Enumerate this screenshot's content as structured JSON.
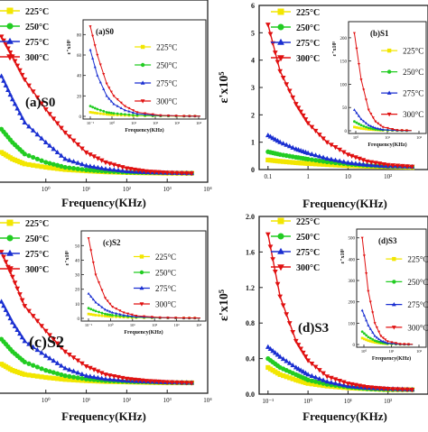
{
  "figure": {
    "colors": {
      "225": "#f2e600",
      "250": "#22cc22",
      "275": "#1a2fd1",
      "300": "#e01010"
    },
    "markers": {
      "225": "square",
      "250": "circle",
      "275": "triangle-up",
      "300": "triangle-down"
    },
    "legend_unit": "°C"
  },
  "chart_data": [
    {
      "type": "line",
      "panel": "top-left",
      "label": "(a)S0",
      "xlabel": "Frequency(KHz)",
      "ylabel": "",
      "x_scale": "log",
      "xlim": [
        0.06,
        10000
      ],
      "x_ticks": [
        "10⁰",
        "10¹",
        "10²",
        "10³",
        "10⁴"
      ],
      "x_tick_values": [
        1,
        10,
        100,
        1000,
        10000
      ],
      "legend_position": "top-left",
      "series": [
        {
          "name": "225",
          "x": [
            0.08,
            0.15,
            0.3,
            1,
            3,
            10,
            30,
            100,
            300,
            1000,
            4000
          ],
          "y": [
            0.9,
            0.7,
            0.55,
            0.45,
            0.38,
            0.34,
            0.31,
            0.29,
            0.28,
            0.27,
            0.27
          ]
        },
        {
          "name": "250",
          "x": [
            0.08,
            0.15,
            0.3,
            1,
            3,
            10,
            30,
            100,
            300,
            1000,
            4000
          ],
          "y": [
            1.6,
            1.2,
            0.85,
            0.6,
            0.45,
            0.37,
            0.33,
            0.3,
            0.29,
            0.28,
            0.27
          ]
        },
        {
          "name": "275",
          "x": [
            0.08,
            0.15,
            0.3,
            1,
            3,
            10,
            30,
            100,
            300,
            1000,
            4000
          ],
          "y": [
            3.2,
            2.5,
            1.8,
            1.2,
            0.7,
            0.5,
            0.4,
            0.33,
            0.3,
            0.28,
            0.27
          ]
        },
        {
          "name": "300",
          "x": [
            0.08,
            0.15,
            0.3,
            1,
            3,
            10,
            30,
            100,
            300,
            1000,
            4000
          ],
          "y": [
            4.4,
            3.8,
            3.1,
            2.2,
            1.5,
            0.9,
            0.6,
            0.42,
            0.33,
            0.29,
            0.27
          ]
        }
      ],
      "inset": {
        "label": "(a)S0",
        "ylabel": "ε\"x10⁵",
        "xlabel": "Frequency(KHz)",
        "yticks": [
          0,
          20,
          40,
          60,
          80
        ],
        "ylim": [
          0,
          90
        ],
        "x_ticks": [
          "10⁻¹",
          "10⁰",
          "10¹",
          "10²",
          "10³",
          "10⁴"
        ],
        "series": [
          {
            "name": "225",
            "x": [
              0.1,
              0.2,
              0.5,
              1,
              3,
              10,
              100,
              1000,
              5000
            ],
            "y": [
              4,
              3,
              2,
              1.5,
              1,
              0.6,
              0.3,
              0.2,
              0.2
            ]
          },
          {
            "name": "250",
            "x": [
              0.1,
              0.2,
              0.5,
              1,
              3,
              10,
              100,
              1000,
              5000
            ],
            "y": [
              10,
              7,
              4,
              3,
              2,
              1,
              0.4,
              0.2,
              0.2
            ]
          },
          {
            "name": "275",
            "x": [
              0.1,
              0.2,
              0.5,
              1,
              3,
              10,
              100,
              1000,
              5000
            ],
            "y": [
              65,
              40,
              20,
              12,
              6,
              2.5,
              0.8,
              0.3,
              0.2
            ]
          },
          {
            "name": "300",
            "x": [
              0.1,
              0.2,
              0.5,
              1,
              3,
              10,
              100,
              1000,
              5000
            ],
            "y": [
              88,
              60,
              32,
              20,
              10,
              4,
              1,
              0.3,
              0.2
            ]
          }
        ]
      }
    },
    {
      "type": "line",
      "panel": "top-right",
      "label": "",
      "xlabel": "Frequency(KHz)",
      "ylabel": "ε'x10⁵",
      "x_scale": "log",
      "xlim": [
        0.06,
        1000
      ],
      "ylim": [
        0,
        6
      ],
      "yticks": [
        0,
        1,
        2,
        3,
        4,
        5,
        6
      ],
      "x_ticks": [
        "0.1",
        "1",
        "10",
        "10²"
      ],
      "x_tick_values": [
        0.1,
        1,
        10,
        100
      ],
      "legend_position": "top-left",
      "series": [
        {
          "name": "225",
          "x": [
            0.1,
            0.2,
            0.5,
            1,
            3,
            10,
            30,
            100,
            400
          ],
          "y": [
            0.35,
            0.3,
            0.25,
            0.22,
            0.18,
            0.14,
            0.12,
            0.1,
            0.08
          ]
        },
        {
          "name": "250",
          "x": [
            0.1,
            0.2,
            0.5,
            1,
            3,
            10,
            30,
            100,
            400
          ],
          "y": [
            0.65,
            0.55,
            0.45,
            0.38,
            0.28,
            0.2,
            0.15,
            0.12,
            0.1
          ]
        },
        {
          "name": "275",
          "x": [
            0.1,
            0.2,
            0.5,
            1,
            3,
            10,
            30,
            100,
            400
          ],
          "y": [
            1.25,
            1.0,
            0.75,
            0.6,
            0.4,
            0.25,
            0.17,
            0.12,
            0.1
          ]
        },
        {
          "name": "300",
          "x": [
            0.1,
            0.2,
            0.5,
            1,
            3,
            10,
            30,
            100,
            400
          ],
          "y": [
            5.3,
            3.6,
            2.4,
            1.7,
            1.0,
            0.55,
            0.3,
            0.17,
            0.11
          ]
        }
      ],
      "inset": {
        "label": "(b)S1",
        "ylabel": "ε\"x10⁵",
        "xlabel": "Frequency(KHz)",
        "yticks": [
          0,
          50,
          100,
          150,
          200
        ],
        "ylim": [
          0,
          225
        ],
        "x_ticks": [
          "10⁰",
          "10¹",
          "10²"
        ],
        "series": [
          {
            "name": "225",
            "x": [
              0.1,
              0.3,
              1,
              3,
              10,
              100,
              1000
            ],
            "y": [
              8,
              5,
              3,
              2,
              1,
              0.5,
              0.3
            ]
          },
          {
            "name": "250",
            "x": [
              0.1,
              0.3,
              1,
              3,
              10,
              100,
              1000
            ],
            "y": [
              20,
              12,
              6,
              3,
              1.5,
              0.6,
              0.3
            ]
          },
          {
            "name": "275",
            "x": [
              0.1,
              0.3,
              1,
              3,
              10,
              100,
              1000
            ],
            "y": [
              45,
              25,
              12,
              6,
              2.5,
              0.8,
              0.3
            ]
          },
          {
            "name": "300",
            "x": [
              0.1,
              0.3,
              1,
              3,
              10,
              100,
              1000
            ],
            "y": [
              210,
              110,
              45,
              20,
              8,
              1.5,
              0.5
            ]
          }
        ]
      }
    },
    {
      "type": "line",
      "panel": "bottom-left",
      "label": "(c)S2",
      "xlabel": "Frequency(KHz)",
      "ylabel": "",
      "x_scale": "log",
      "xlim": [
        0.06,
        10000
      ],
      "x_ticks": [
        "10⁰",
        "10¹",
        "10²",
        "10³",
        "10⁴"
      ],
      "x_tick_values": [
        1,
        10,
        100,
        1000,
        10000
      ],
      "legend_position": "top-left",
      "series": [
        {
          "name": "225",
          "x": [
            0.08,
            0.15,
            0.3,
            1,
            3,
            10,
            30,
            100,
            300,
            1000,
            4000
          ],
          "y": [
            0.7,
            0.55,
            0.45,
            0.38,
            0.33,
            0.3,
            0.28,
            0.27,
            0.26,
            0.25,
            0.25
          ]
        },
        {
          "name": "250",
          "x": [
            0.08,
            0.15,
            0.3,
            1,
            3,
            10,
            30,
            100,
            300,
            1000,
            4000
          ],
          "y": [
            1.3,
            1.0,
            0.75,
            0.55,
            0.42,
            0.34,
            0.3,
            0.28,
            0.27,
            0.26,
            0.25
          ]
        },
        {
          "name": "275",
          "x": [
            0.08,
            0.15,
            0.3,
            1,
            3,
            10,
            30,
            100,
            300,
            1000,
            4000
          ],
          "y": [
            2.2,
            1.7,
            1.25,
            0.9,
            0.6,
            0.42,
            0.34,
            0.3,
            0.28,
            0.26,
            0.25
          ]
        },
        {
          "name": "300",
          "x": [
            0.08,
            0.15,
            0.3,
            1,
            3,
            10,
            30,
            100,
            300,
            1000,
            4000
          ],
          "y": [
            3.4,
            2.8,
            2.1,
            1.5,
            1.0,
            0.65,
            0.45,
            0.35,
            0.3,
            0.27,
            0.25
          ]
        }
      ],
      "inset": {
        "label": "(c)S2",
        "ylabel": "ε\"x10⁵",
        "xlabel": "Frequency(KHz)",
        "yticks": [
          0,
          10,
          20,
          30,
          40,
          50
        ],
        "ylim": [
          0,
          57
        ],
        "x_ticks": [
          "10⁻¹",
          "10⁰",
          "10¹",
          "10²",
          "10³",
          "10⁴"
        ],
        "series": [
          {
            "name": "225",
            "x": [
              0.1,
              0.2,
              0.5,
              1,
              3,
              10,
              100,
              1000,
              5000
            ],
            "y": [
              3,
              2.2,
              1.6,
              1.2,
              0.8,
              0.5,
              0.3,
              0.2,
              0.2
            ]
          },
          {
            "name": "250",
            "x": [
              0.1,
              0.2,
              0.5,
              1,
              3,
              10,
              100,
              1000,
              5000
            ],
            "y": [
              7,
              5,
              3,
              2.2,
              1.4,
              0.8,
              0.4,
              0.2,
              0.2
            ]
          },
          {
            "name": "275",
            "x": [
              0.1,
              0.2,
              0.5,
              1,
              3,
              10,
              100,
              1000,
              5000
            ],
            "y": [
              17,
              11,
              6,
              4,
              2.2,
              1.1,
              0.5,
              0.2,
              0.2
            ]
          },
          {
            "name": "300",
            "x": [
              0.1,
              0.2,
              0.5,
              1,
              3,
              10,
              100,
              1000,
              5000
            ],
            "y": [
              55,
              30,
              14,
              8,
              4,
              1.8,
              0.6,
              0.3,
              0.2
            ]
          }
        ]
      }
    },
    {
      "type": "line",
      "panel": "bottom-right",
      "label": "(d)S3",
      "xlabel": "Frequency(KHz)",
      "ylabel": "ε'x10⁵",
      "x_scale": "log",
      "xlim": [
        0.06,
        1000
      ],
      "ylim": [
        0,
        2.0
      ],
      "yticks": [
        0.0,
        0.4,
        0.8,
        1.2,
        1.6,
        2.0
      ],
      "ytick_labels": [
        "0.0",
        "0.4",
        "0.8",
        "1.2",
        "1.6",
        "2.0"
      ],
      "x_ticks": [
        "10⁻¹",
        "10⁰",
        "10¹",
        "10²"
      ],
      "x_tick_values": [
        0.1,
        1,
        10,
        100
      ],
      "legend_position": "top-left",
      "series": [
        {
          "name": "225",
          "x": [
            0.1,
            0.2,
            0.5,
            1,
            3,
            10,
            30,
            100,
            400
          ],
          "y": [
            0.3,
            0.22,
            0.16,
            0.12,
            0.09,
            0.07,
            0.06,
            0.05,
            0.05
          ]
        },
        {
          "name": "250",
          "x": [
            0.1,
            0.2,
            0.5,
            1,
            3,
            10,
            30,
            100,
            400
          ],
          "y": [
            0.4,
            0.3,
            0.22,
            0.16,
            0.11,
            0.08,
            0.06,
            0.05,
            0.05
          ]
        },
        {
          "name": "275",
          "x": [
            0.1,
            0.2,
            0.5,
            1,
            3,
            10,
            30,
            100,
            400
          ],
          "y": [
            0.53,
            0.42,
            0.3,
            0.22,
            0.14,
            0.09,
            0.07,
            0.06,
            0.05
          ]
        },
        {
          "name": "300",
          "x": [
            0.1,
            0.2,
            0.5,
            1,
            3,
            10,
            30,
            100,
            400
          ],
          "y": [
            1.8,
            1.1,
            0.6,
            0.38,
            0.2,
            0.12,
            0.08,
            0.06,
            0.05
          ]
        }
      ],
      "inset": {
        "label": "(d)S3",
        "ylabel": "ε\"x10⁵",
        "xlabel": "Frequency(KHz)",
        "yticks": [
          0,
          100,
          200,
          300,
          400,
          500
        ],
        "ylim": [
          0,
          520
        ],
        "x_ticks": [
          "10⁰",
          "10¹",
          "10²"
        ],
        "series": [
          {
            "name": "225",
            "x": [
              0.1,
              0.3,
              1,
              3,
              10,
              100,
              1000
            ],
            "y": [
              30,
              18,
              10,
              6,
              3,
              1,
              0.5
            ]
          },
          {
            "name": "250",
            "x": [
              0.1,
              0.3,
              1,
              3,
              10,
              100,
              1000
            ],
            "y": [
              60,
              35,
              18,
              9,
              4,
              1.2,
              0.5
            ]
          },
          {
            "name": "275",
            "x": [
              0.1,
              0.3,
              1,
              3,
              10,
              100,
              1000
            ],
            "y": [
              160,
              90,
              40,
              18,
              7,
              1.5,
              0.5
            ]
          },
          {
            "name": "300",
            "x": [
              0.1,
              0.3,
              1,
              3,
              10,
              100,
              1000
            ],
            "y": [
              500,
              250,
              100,
              40,
              15,
              2.5,
              0.8
            ]
          }
        ]
      }
    }
  ]
}
